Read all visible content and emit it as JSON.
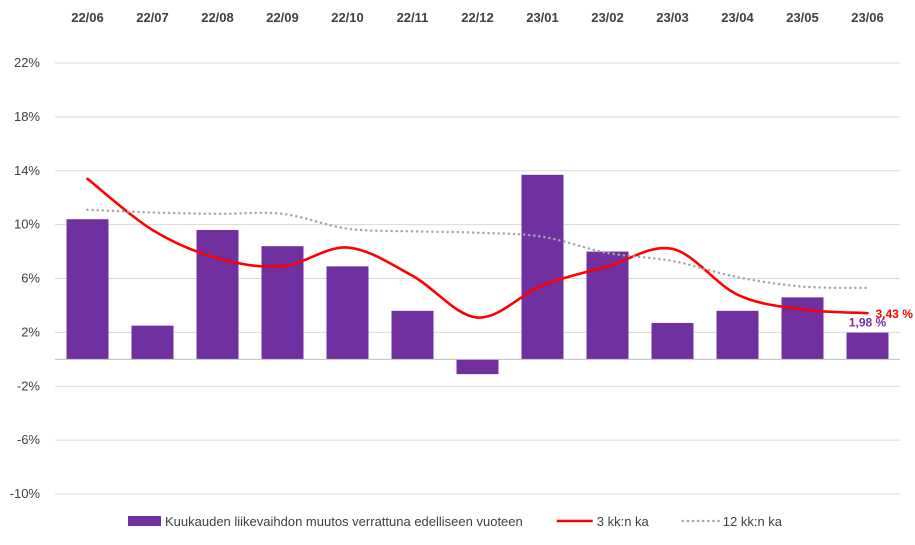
{
  "chart_data": {
    "type": "bar",
    "categories": [
      "22/06",
      "22/07",
      "22/08",
      "22/09",
      "22/10",
      "22/11",
      "22/12",
      "23/01",
      "23/02",
      "23/03",
      "23/04",
      "23/05",
      "23/06"
    ],
    "y_ticks": [
      "22%",
      "18%",
      "14%",
      "10%",
      "6%",
      "2%",
      "-2%",
      "-6%",
      "-10%"
    ],
    "ylim": [
      -10,
      22
    ],
    "grid": true,
    "legend_position": "bottom",
    "series": [
      {
        "name": "Kuukauden liikevaihdon muutos verrattuna edelliseen vuoteen",
        "kind": "bar",
        "color": "#7030A0",
        "values": [
          10.4,
          2.5,
          9.6,
          8.4,
          6.9,
          3.6,
          -1.1,
          13.7,
          8.0,
          2.7,
          3.6,
          4.6,
          1.98
        ]
      },
      {
        "name": "3 kk:n ka",
        "kind": "line",
        "color": "#FF0000",
        "values": [
          13.4,
          9.6,
          7.5,
          6.9,
          8.3,
          6.2,
          3.1,
          5.5,
          6.9,
          8.2,
          4.8,
          3.7,
          3.43
        ]
      },
      {
        "name": "12 kk:n ka",
        "kind": "dotted-line",
        "color": "#A6A6A6",
        "values": [
          11.1,
          10.9,
          10.8,
          10.8,
          9.7,
          9.5,
          9.4,
          9.1,
          7.9,
          7.3,
          6.1,
          5.4,
          5.3
        ]
      }
    ],
    "annotations": [
      {
        "text": "3,43 %",
        "series": "3 kk:n ka",
        "index": 12,
        "color": "#FF0000"
      },
      {
        "text": "1,98 %",
        "series": "Kuukauden liikevaihdon muutos verrattuna edelliseen vuoteen",
        "index": 12,
        "color": "#7030A0"
      }
    ]
  }
}
